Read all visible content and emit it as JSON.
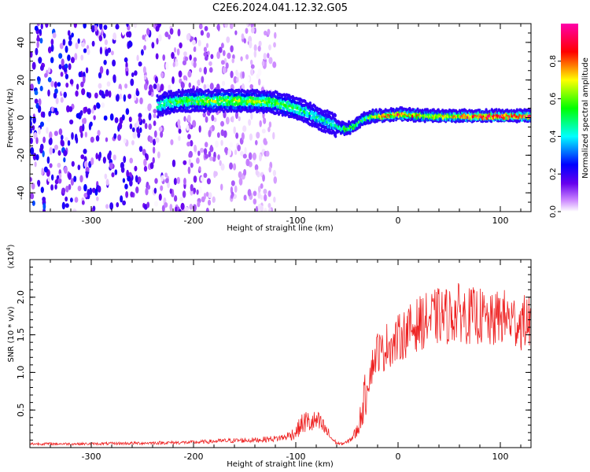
{
  "title": "C2E6.2024.041.12.32.G05",
  "chart_data": [
    {
      "type": "heatmap",
      "xlabel": "Height of straight line (km)",
      "ylabel": "Frequency (Hz)",
      "xlim": [
        -360,
        130
      ],
      "ylim": [
        -50,
        50
      ],
      "x_ticks": [
        -300,
        -200,
        -100,
        0,
        100
      ],
      "y_ticks": [
        -40,
        -20,
        0,
        20,
        40
      ],
      "colorbar": {
        "label": "Normalized spectral amplitude",
        "range": [
          0.0,
          1.0
        ],
        "ticks": [
          0.0,
          0.2,
          0.4,
          0.6,
          0.8
        ],
        "colormap": [
          "#ffffff",
          "#cc88ff",
          "#6600ee",
          "#0000ff",
          "#00ffff",
          "#00ff00",
          "#ffff00",
          "#ff0000",
          "#ff00aa"
        ]
      },
      "ridge": {
        "x": [
          -235,
          -225,
          -210,
          -200,
          -180,
          -160,
          -140,
          -120,
          -105,
          -90,
          -75,
          -62,
          -52,
          -45,
          -35,
          -25,
          -15,
          0,
          30,
          60,
          90,
          110,
          130
        ],
        "frequency": [
          6,
          8,
          9,
          9,
          9,
          9,
          9,
          8,
          6,
          3,
          -1,
          -4,
          -6,
          -5,
          -1,
          1,
          1,
          2,
          1,
          1,
          1,
          1,
          1
        ],
        "amplitude": [
          0.45,
          0.5,
          0.55,
          0.55,
          0.6,
          0.6,
          0.6,
          0.55,
          0.5,
          0.45,
          0.45,
          0.4,
          0.6,
          0.6,
          0.55,
          0.6,
          0.8,
          0.8,
          0.65,
          0.8,
          0.9,
          0.9,
          0.85
        ]
      },
      "noise_region": {
        "x_range": [
          -360,
          -120
        ],
        "max_amplitude": 0.3
      }
    },
    {
      "type": "line",
      "xlabel": "Height of straight line (km)",
      "ylabel": "SNR (10 * v/v)",
      "y_multiplier": "(x10",
      "y_multiplier_exp": "4",
      "y_multiplier_close": ")",
      "xlim": [
        -360,
        130
      ],
      "ylim": [
        0,
        25000
      ],
      "x_ticks": [
        -300,
        -200,
        -100,
        0,
        100
      ],
      "y_ticks": [
        5000,
        10000,
        15000,
        20000
      ],
      "y_tick_labels": [
        "0.5",
        "1.0",
        "1.5",
        "2.0"
      ],
      "series": [
        {
          "color": "#ee2222",
          "x": [
            -360,
            -300,
            -250,
            -200,
            -170,
            -140,
            -120,
            -110,
            -100,
            -95,
            -90,
            -85,
            -80,
            -75,
            -70,
            -65,
            -60,
            -55,
            -50,
            -45,
            -40,
            -35,
            -30,
            -25,
            -20,
            -15,
            -10,
            -5,
            0,
            10,
            20,
            30,
            40,
            50,
            60,
            70,
            80,
            90,
            100,
            110,
            120,
            130
          ],
          "y": [
            500,
            500,
            600,
            700,
            900,
            1000,
            1200,
            1400,
            2000,
            3000,
            3500,
            3200,
            3500,
            3000,
            2200,
            1200,
            600,
            500,
            700,
            1300,
            2200,
            5000,
            8500,
            11000,
            13000,
            12500,
            14000,
            13500,
            14500,
            15500,
            16500,
            17000,
            17500,
            17500,
            18000,
            17500,
            17500,
            16500,
            17500,
            17000,
            16500,
            17000
          ]
        }
      ]
    }
  ]
}
